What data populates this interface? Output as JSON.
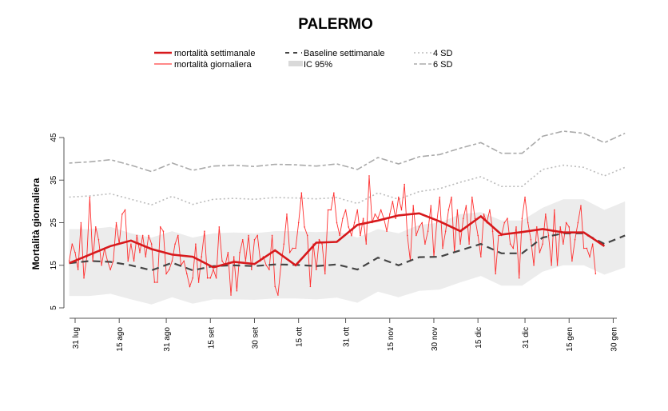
{
  "chart_data": {
    "type": "line",
    "title": "PALERMO",
    "xlabel": "",
    "ylabel": "Mortalità giornaliera",
    "ylim": [
      5,
      45
    ],
    "yticks": [
      5,
      15,
      25,
      35,
      45
    ],
    "x_unit": "days since 31 lug",
    "xlim": [
      -3,
      185
    ],
    "xticks": [
      {
        "day": 0,
        "label": "31 lug"
      },
      {
        "day": 15,
        "label": "15 ago"
      },
      {
        "day": 31,
        "label": "31 ago"
      },
      {
        "day": 46,
        "label": "15 set"
      },
      {
        "day": 61,
        "label": "30 set"
      },
      {
        "day": 76,
        "label": "15 ott"
      },
      {
        "day": 92,
        "label": "31 ott"
      },
      {
        "day": 107,
        "label": "15 nov"
      },
      {
        "day": 122,
        "label": "30 nov"
      },
      {
        "day": 137,
        "label": "15 dic"
      },
      {
        "day": 153,
        "label": "31 dic"
      },
      {
        "day": 168,
        "label": "15 gen"
      },
      {
        "day": 183,
        "label": "30 gen"
      }
    ],
    "grid": false,
    "legend_placement": "top",
    "legend": {
      "weekly": "mortalità settimanale",
      "daily": "mortalità giornaliera",
      "baseline": "Baseline settimanale",
      "ci": "IC 95%",
      "sd4": "4 SD",
      "sd6": "6 SD"
    },
    "colors": {
      "weekly": "#d7191c",
      "daily": "#ff3030",
      "baseline": "#444444",
      "ci": "#ececec",
      "sd4": "#bbbbbb",
      "sd6": "#aaaaaa"
    },
    "weekly_start_day": -2,
    "weekly_step_days": 7,
    "series": [
      {
        "name": "mortalità settimanale",
        "values": [
          15.5,
          17.5,
          19.5,
          20.8,
          18.8,
          17.5,
          17,
          14.5,
          15.8,
          15.3,
          18.5,
          15,
          20.3,
          20.5,
          24.5,
          25.5,
          26.7,
          27.2,
          25.3,
          23,
          26.5,
          22.2,
          22.8,
          23.5,
          22.7,
          22.7,
          19.5
        ]
      },
      {
        "name": "Baseline settimanale",
        "values": [
          15.5,
          16,
          15.8,
          15,
          13.8,
          15.6,
          13.8,
          14.8,
          15,
          14.8,
          15.2,
          15.1,
          14.8,
          15.2,
          14,
          16.8,
          15,
          16.9,
          17,
          18.5,
          20,
          17.8,
          17.8,
          21.5,
          22.5,
          22.5,
          20,
          22
        ]
      },
      {
        "name": "IC 95% upper",
        "values": [
          23.5,
          23.5,
          24,
          22.5,
          21.5,
          23,
          21.5,
          22.5,
          22.7,
          22.5,
          23,
          23,
          22.8,
          23,
          21.5,
          23.5,
          22.5,
          24.5,
          25,
          27,
          27.5,
          25.5,
          25.5,
          28.5,
          30.5,
          30.5,
          28,
          30
        ]
      },
      {
        "name": "IC 95% lower",
        "values": [
          7.8,
          7.8,
          8.3,
          7,
          5.8,
          7.5,
          6,
          7,
          7,
          6.9,
          7.2,
          7.2,
          7,
          7.4,
          6.2,
          8.8,
          7.5,
          9,
          9.3,
          11,
          12.5,
          10.2,
          10.2,
          13.5,
          15,
          15,
          12.8,
          14.5
        ]
      },
      {
        "name": "4 SD",
        "values": [
          31,
          31.3,
          31.8,
          30.5,
          29.2,
          31.2,
          29.3,
          30.5,
          30.7,
          30.5,
          30.9,
          30.8,
          30.6,
          30.9,
          29.5,
          32,
          30.5,
          32.3,
          33,
          34.5,
          35.8,
          33.5,
          33.5,
          37.5,
          38.5,
          38,
          36,
          38
        ]
      },
      {
        "name": "6 SD",
        "values": [
          39,
          39.3,
          39.8,
          38.5,
          37,
          39,
          37.3,
          38.3,
          38.5,
          38.2,
          38.7,
          38.6,
          38.3,
          38.8,
          37.5,
          40.3,
          38.8,
          40.5,
          41,
          42.5,
          43.8,
          41.3,
          41.3,
          45.3,
          46.5,
          46,
          43.8,
          46
        ]
      },
      {
        "name": "mortalità giornaliera",
        "start_day": -2,
        "values": [
          16,
          20,
          18,
          14,
          25,
          12,
          17,
          31,
          16,
          24,
          21,
          15,
          19,
          16,
          14,
          16,
          25,
          20,
          27,
          28,
          16,
          20,
          16,
          22,
          18,
          22,
          17,
          22,
          20,
          11,
          11,
          24,
          23,
          13,
          14,
          16,
          20,
          22,
          15,
          16,
          13,
          10,
          12,
          20,
          11,
          17,
          23,
          12,
          12,
          14,
          12,
          24,
          16,
          15,
          18,
          8,
          17,
          9,
          18,
          21,
          16,
          22,
          14,
          21,
          22,
          16,
          17,
          15,
          14,
          22,
          10,
          8,
          15,
          20,
          27,
          18,
          19,
          19,
          25,
          32,
          24,
          22,
          10,
          20,
          14,
          21,
          20,
          13,
          28,
          28,
          32,
          25,
          22,
          26,
          28,
          24,
          22,
          25,
          28,
          22,
          26,
          20,
          36,
          25,
          27,
          26,
          28,
          26,
          23,
          27,
          30,
          26,
          31,
          28,
          34,
          22,
          16,
          29,
          22,
          24,
          25,
          20,
          23,
          29,
          17,
          25,
          31,
          19,
          23,
          28,
          31,
          18,
          28,
          20,
          26,
          29,
          20,
          31,
          26,
          22,
          17,
          27,
          25,
          28,
          23,
          13,
          22,
          22,
          25,
          26,
          20,
          19,
          24,
          12,
          26,
          31,
          25,
          21,
          15,
          24,
          18,
          20,
          27,
          22,
          15,
          28,
          15,
          24,
          20,
          25,
          24,
          16,
          21,
          25,
          29,
          19,
          19,
          17,
          20,
          13
        ]
      }
    ]
  }
}
